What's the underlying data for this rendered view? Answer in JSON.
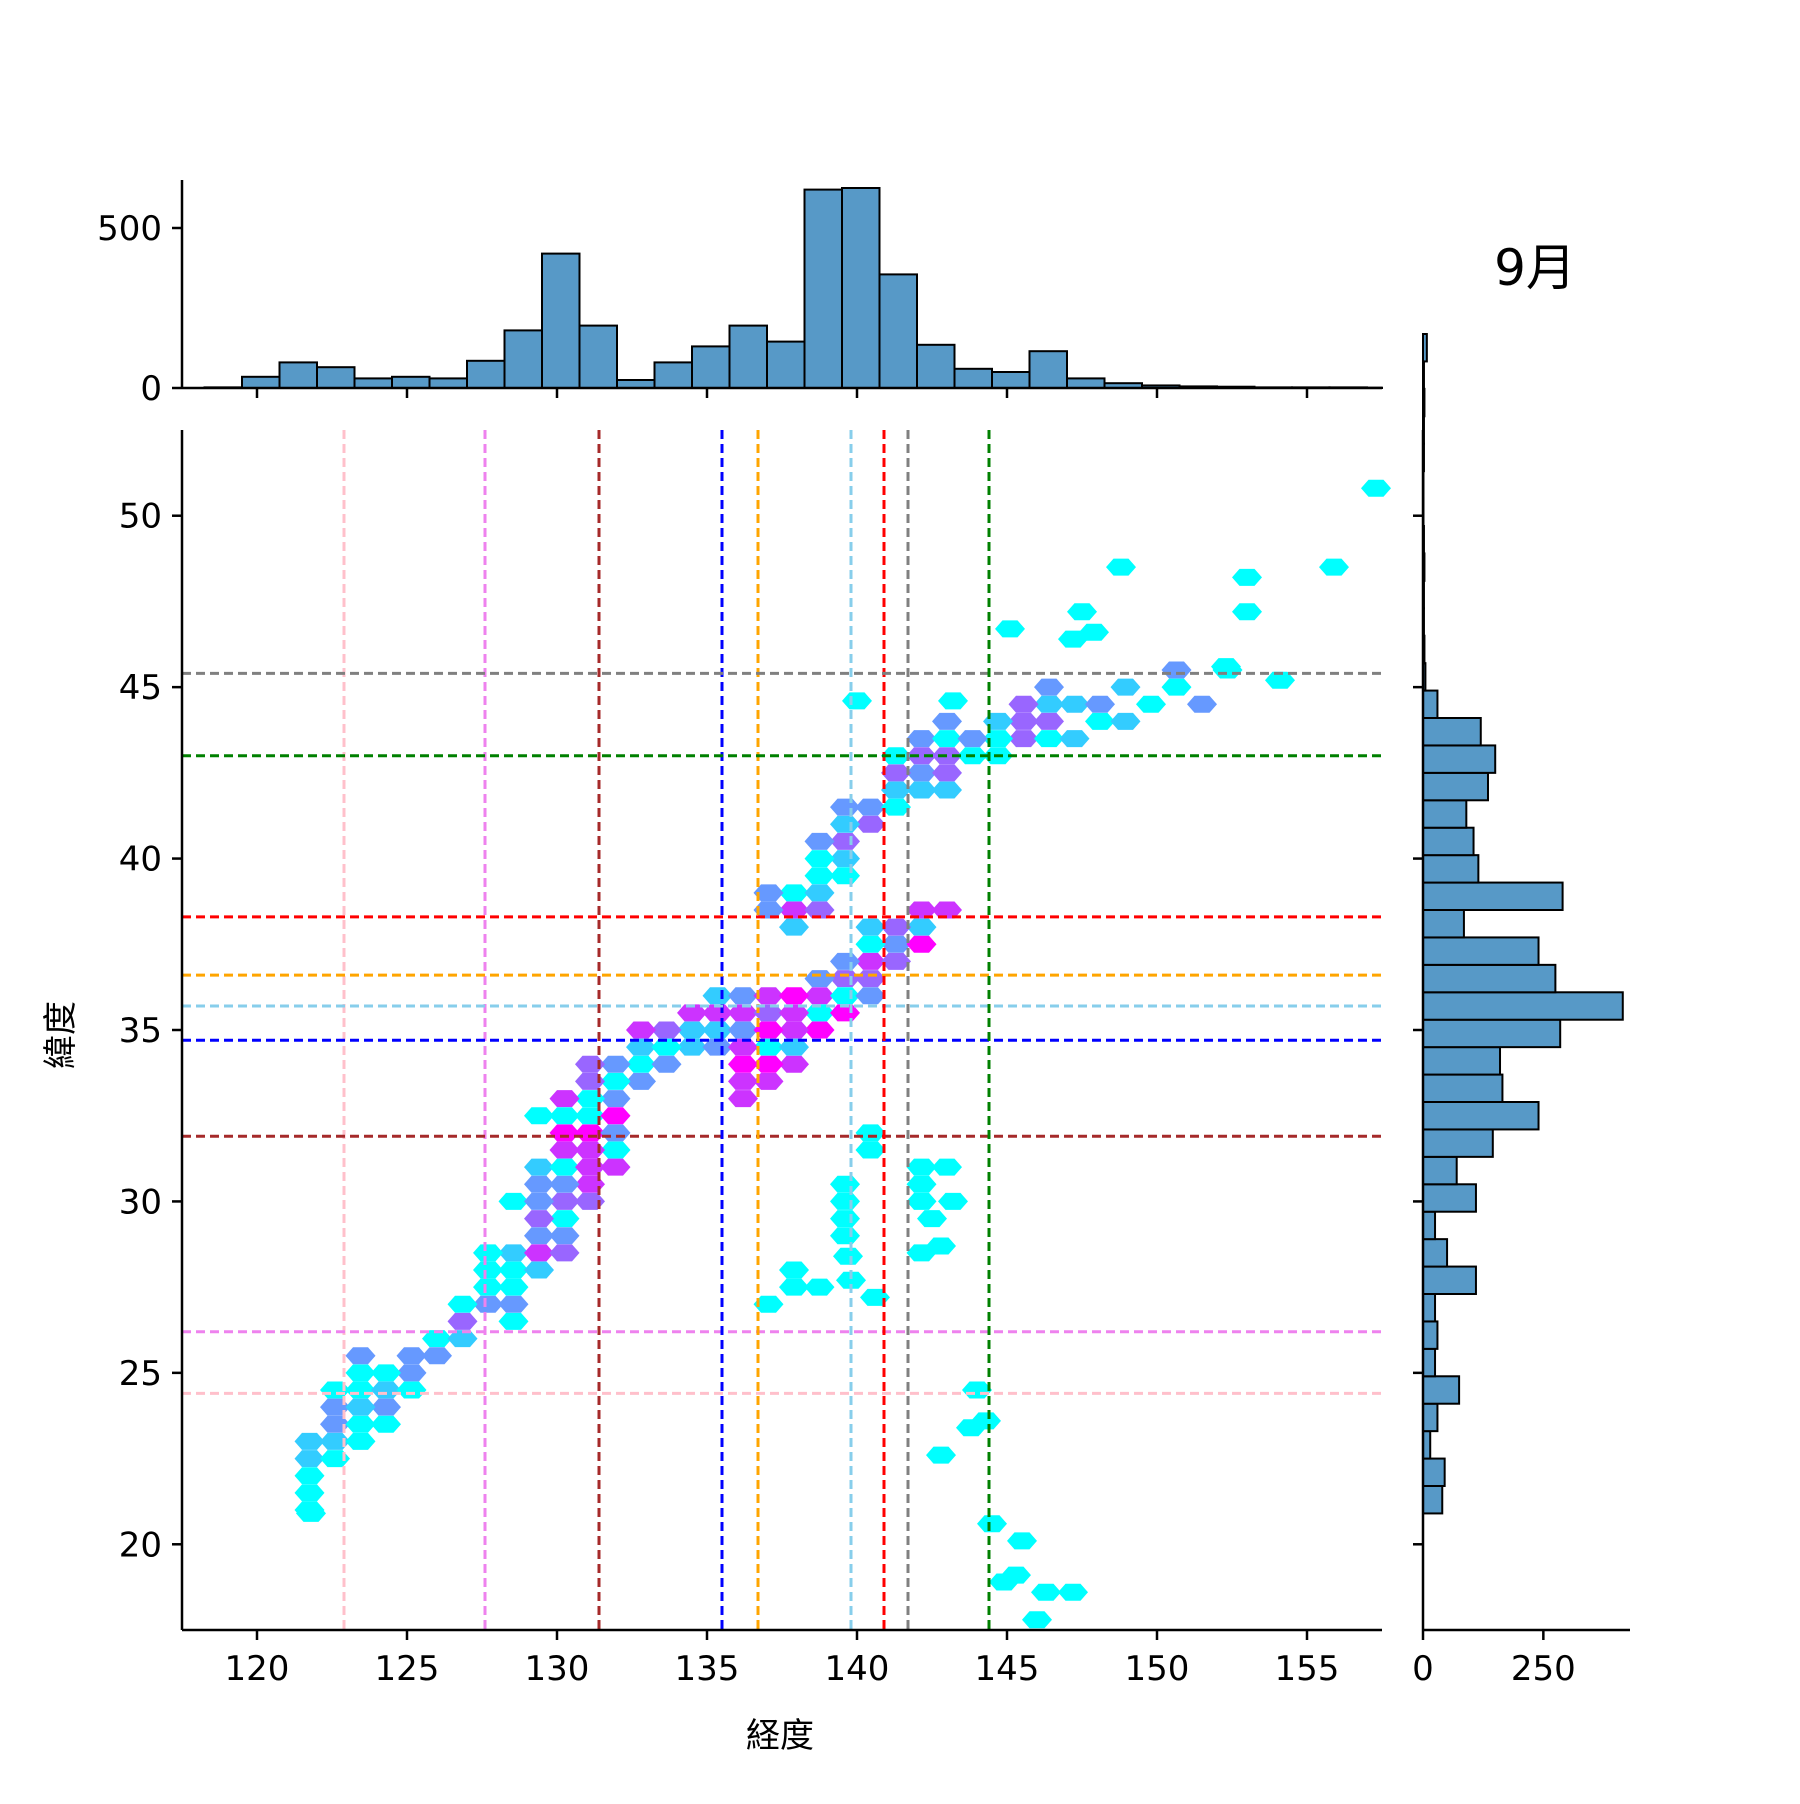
{
  "title": "9月",
  "chart_data": {
    "type": "hexbin-joint",
    "title": "9月",
    "xlabel": "経度",
    "ylabel": "緯度",
    "xlim": [
      117.5,
      157.5
    ],
    "ylim": [
      17.5,
      52.5
    ],
    "x_ticks": [
      "120",
      "125",
      "130",
      "135",
      "140",
      "145",
      "150",
      "155"
    ],
    "x_tick_values": [
      120,
      125,
      130,
      135,
      140,
      145,
      150,
      155
    ],
    "y_ticks": [
      "20",
      "25",
      "30",
      "35",
      "40",
      "45",
      "50"
    ],
    "y_tick_values": [
      20,
      25,
      30,
      35,
      40,
      45,
      50
    ],
    "top_hist": {
      "ylim": [
        0,
        650
      ],
      "y_ticks": [
        "0",
        "500"
      ],
      "y_tick_values": [
        0,
        500
      ],
      "bin_start": 118.25,
      "bin_width": 1.25,
      "counts": [
        2,
        35,
        80,
        65,
        30,
        35,
        30,
        85,
        180,
        420,
        195,
        25,
        80,
        130,
        195,
        145,
        620,
        625,
        355,
        135,
        60,
        50,
        115,
        30,
        15,
        8,
        5,
        4,
        2,
        2,
        2,
        1
      ]
    },
    "right_hist": {
      "xlim": [
        0,
        430
      ],
      "x_ticks": [
        "0",
        "250"
      ],
      "x_tick_values": [
        0,
        250
      ],
      "bin_start": 20.9,
      "bin_width": 0.8,
      "counts": [
        40,
        45,
        15,
        30,
        75,
        25,
        30,
        25,
        110,
        50,
        25,
        110,
        70,
        145,
        240,
        165,
        160,
        285,
        415,
        275,
        240,
        85,
        290,
        115,
        105,
        90,
        135,
        150,
        120,
        30,
        5,
        3,
        2,
        2,
        3,
        2,
        1,
        1,
        2,
        2,
        3,
        2,
        8
      ]
    },
    "reference_lines": [
      {
        "color": "#ffc0cb",
        "x": 122.9,
        "y": 24.4
      },
      {
        "color": "#ee82ee",
        "x": 127.6,
        "y": 26.2
      },
      {
        "color": "#a52a2a",
        "x": 131.4,
        "y": 31.9
      },
      {
        "color": "#0000ff",
        "x": 135.5,
        "y": 34.7
      },
      {
        "color": "#ffa500",
        "x": 136.7,
        "y": 36.6
      },
      {
        "color": "#87ceeb",
        "x": 139.8,
        "y": 35.7
      },
      {
        "color": "#ff0000",
        "x": 140.9,
        "y": 38.3
      },
      {
        "color": "#808080",
        "x": 141.7,
        "y": 45.4
      },
      {
        "color": "#008000",
        "x": 144.4,
        "y": 43.0
      }
    ],
    "hex_clusters": [
      {
        "x": [
          121.5,
          123.5
        ],
        "y": [
          21,
          25.5
        ],
        "count": 26,
        "density": 0.25
      },
      {
        "x": [
          122.5,
          126
        ],
        "y": [
          23,
          26
        ],
        "count": 26,
        "density": 0.3
      },
      {
        "x": [
          126,
          129.5
        ],
        "y": [
          25.5,
          28.5
        ],
        "count": 30,
        "density": 0.4
      },
      {
        "x": [
          128,
          131.5
        ],
        "y": [
          27.5,
          31
        ],
        "count": 40,
        "density": 0.5
      },
      {
        "x": [
          129,
          133
        ],
        "y": [
          30,
          34
        ],
        "count": 70,
        "density": 0.6
      },
      {
        "x": [
          130,
          137
        ],
        "y": [
          33,
          36
        ],
        "count": 80,
        "density": 0.55
      },
      {
        "x": [
          136,
          142.5
        ],
        "y": [
          33.5,
          38.5
        ],
        "count": 150,
        "density": 0.75
      },
      {
        "x": [
          137.5,
          143
        ],
        "y": [
          38.5,
          43.5
        ],
        "count": 90,
        "density": 0.45
      },
      {
        "x": [
          141,
          147.5
        ],
        "y": [
          41.5,
          45
        ],
        "count": 50,
        "density": 0.4
      },
      {
        "x": [
          146,
          152
        ],
        "y": [
          43.5,
          45.2
        ],
        "count": 18,
        "density": 0.3
      },
      {
        "x": [
          137.5,
          141
        ],
        "y": [
          27,
          32
        ],
        "count": 14,
        "density": 0.1
      },
      {
        "x": [
          141.5,
          143
        ],
        "y": [
          28.5,
          32
        ],
        "count": 6,
        "density": 0.1
      }
    ],
    "hex_singles": [
      {
        "x": 157.3,
        "y": 50.8
      },
      {
        "x": 148.8,
        "y": 48.5
      },
      {
        "x": 155.9,
        "y": 48.5
      },
      {
        "x": 153.0,
        "y": 48.2
      },
      {
        "x": 147.5,
        "y": 47.2
      },
      {
        "x": 153.0,
        "y": 47.2
      },
      {
        "x": 145.1,
        "y": 46.7
      },
      {
        "x": 147.9,
        "y": 46.6
      },
      {
        "x": 147.2,
        "y": 46.4
      },
      {
        "x": 152.3,
        "y": 45.6
      },
      {
        "x": 154.1,
        "y": 45.2
      },
      {
        "x": 140.0,
        "y": 44.6
      },
      {
        "x": 143.2,
        "y": 44.6
      },
      {
        "x": 144.0,
        "y": 24.5
      },
      {
        "x": 143.8,
        "y": 23.4
      },
      {
        "x": 144.3,
        "y": 23.6
      },
      {
        "x": 142.8,
        "y": 22.6
      },
      {
        "x": 144.5,
        "y": 20.6
      },
      {
        "x": 145.5,
        "y": 20.1
      },
      {
        "x": 145.3,
        "y": 19.1
      },
      {
        "x": 144.9,
        "y": 18.9
      },
      {
        "x": 146.3,
        "y": 18.6
      },
      {
        "x": 147.2,
        "y": 18.6
      },
      {
        "x": 146.0,
        "y": 17.8
      },
      {
        "x": 140.6,
        "y": 27.2
      },
      {
        "x": 139.8,
        "y": 27.7
      },
      {
        "x": 139.7,
        "y": 28.4
      },
      {
        "x": 142.8,
        "y": 28.7
      },
      {
        "x": 142.5,
        "y": 29.5
      },
      {
        "x": 143.2,
        "y": 30.0
      },
      {
        "x": 121.8,
        "y": 20.9
      }
    ],
    "colormap": [
      "#00ffff",
      "#33ccff",
      "#6699ff",
      "#9966ff",
      "#cc33ff",
      "#ff00ff"
    ],
    "bar_color": "#5799c7"
  }
}
